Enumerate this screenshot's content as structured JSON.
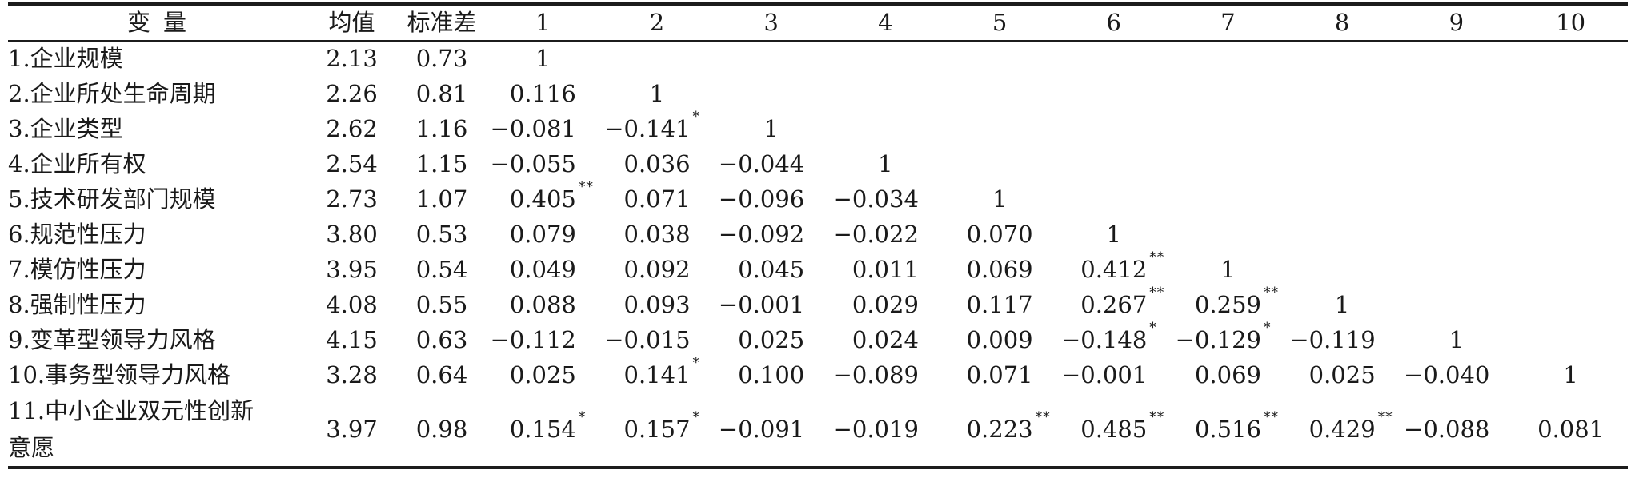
{
  "table": {
    "headers": [
      "变量",
      "均值",
      "标准差",
      "1",
      "2",
      "3",
      "4",
      "5",
      "6",
      "7",
      "8",
      "9",
      "10"
    ],
    "rows": [
      {
        "label": "1.企业规模",
        "mean": "2.13",
        "sd": "0.73",
        "corr": [
          "1",
          "",
          "",
          "",
          "",
          "",
          "",
          "",
          "",
          ""
        ]
      },
      {
        "label": "2.企业所处生命周期",
        "mean": "2.26",
        "sd": "0.81",
        "corr": [
          "0.116",
          "1",
          "",
          "",
          "",
          "",
          "",
          "",
          "",
          ""
        ]
      },
      {
        "label": "3.企业类型",
        "mean": "2.62",
        "sd": "1.16",
        "corr": [
          "−0.081",
          "−0.141*",
          "1",
          "",
          "",
          "",
          "",
          "",
          "",
          ""
        ]
      },
      {
        "label": "4.企业所有权",
        "mean": "2.54",
        "sd": "1.15",
        "corr": [
          "−0.055",
          "0.036",
          "−0.044",
          "1",
          "",
          "",
          "",
          "",
          "",
          ""
        ]
      },
      {
        "label": "5.技术研发部门规模",
        "mean": "2.73",
        "sd": "1.07",
        "corr": [
          "0.405**",
          "0.071",
          "−0.096",
          "−0.034",
          "1",
          "",
          "",
          "",
          "",
          ""
        ]
      },
      {
        "label": "6.规范性压力",
        "mean": "3.80",
        "sd": "0.53",
        "corr": [
          "0.079",
          "0.038",
          "−0.092",
          "−0.022",
          "0.070",
          "1",
          "",
          "",
          "",
          ""
        ]
      },
      {
        "label": "7.模仿性压力",
        "mean": "3.95",
        "sd": "0.54",
        "corr": [
          "0.049",
          "0.092",
          "0.045",
          "0.011",
          "0.069",
          "0.412**",
          "1",
          "",
          "",
          ""
        ]
      },
      {
        "label": "8.强制性压力",
        "mean": "4.08",
        "sd": "0.55",
        "corr": [
          "0.088",
          "0.093",
          "−0.001",
          "0.029",
          "0.117",
          "0.267**",
          "0.259**",
          "1",
          "",
          ""
        ]
      },
      {
        "label": "9.变革型领导力风格",
        "mean": "4.15",
        "sd": "0.63",
        "corr": [
          "−0.112",
          "−0.015",
          "0.025",
          "0.024",
          "0.009",
          "−0.148*",
          "−0.129*",
          "−0.119",
          "1",
          ""
        ]
      },
      {
        "label": "10.事务型领导力风格",
        "mean": "3.28",
        "sd": "0.64",
        "corr": [
          "0.025",
          "0.141*",
          "0.100",
          "−0.089",
          "0.071",
          "−0.001",
          "0.069",
          "0.025",
          "−0.040",
          "1"
        ]
      },
      {
        "label": "11.中小企业双元性创新意愿",
        "label_lines": [
          "11.中小企业双元性创新",
          "意愿"
        ],
        "mean": "3.97",
        "sd": "0.98",
        "corr": [
          "0.154*",
          "0.157*",
          "−0.091",
          "−0.019",
          "0.223**",
          "0.485**",
          "0.516**",
          "0.429**",
          "−0.088",
          "0.081"
        ]
      }
    ]
  }
}
